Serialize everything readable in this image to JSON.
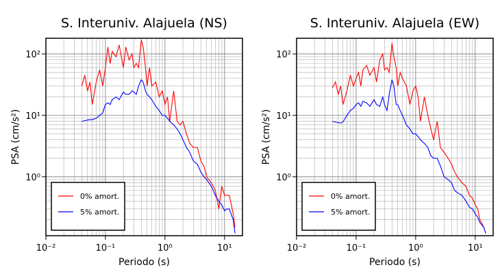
{
  "chart_data": [
    {
      "type": "line",
      "title": "S. Interuniv. Alajuela (NS)",
      "xlabel": "Periodo (s)",
      "ylabel": "PSA (cm/s²)",
      "xscale": "log",
      "yscale": "log",
      "grid": true,
      "legend": "lower left",
      "xlim": [
        0.01,
        20
      ],
      "ylim": [
        0.11,
        180
      ],
      "xticks": [
        {
          "value": 0.01,
          "label": "10⁻²"
        },
        {
          "value": 0.1,
          "label": "10⁻¹"
        },
        {
          "value": 1,
          "label": "10⁰"
        },
        {
          "value": 10,
          "label": "10¹"
        }
      ],
      "yticks": [
        {
          "value": 1,
          "label": "10⁰"
        },
        {
          "value": 10,
          "label": "10¹"
        },
        {
          "value": 100,
          "label": "10²"
        }
      ],
      "xminorticks": [
        0.02,
        0.03,
        0.04,
        0.05,
        0.06,
        0.07,
        0.08,
        0.09,
        0.2,
        0.3,
        0.4,
        0.5,
        0.6,
        0.7,
        0.8,
        0.9,
        2,
        3,
        4,
        5,
        6,
        7,
        8,
        9
      ],
      "yminorticks": [
        0.2,
        0.3,
        0.4,
        0.5,
        0.6,
        0.7,
        0.8,
        0.9,
        2,
        3,
        4,
        5,
        6,
        7,
        8,
        9,
        20,
        30,
        40,
        50,
        60,
        70,
        80,
        90
      ],
      "x": [
        0.04,
        0.045,
        0.05,
        0.055,
        0.06,
        0.07,
        0.08,
        0.09,
        0.1,
        0.11,
        0.12,
        0.13,
        0.15,
        0.17,
        0.2,
        0.22,
        0.25,
        0.28,
        0.3,
        0.33,
        0.36,
        0.4,
        0.43,
        0.47,
        0.5,
        0.55,
        0.6,
        0.7,
        0.8,
        0.9,
        1.0,
        1.1,
        1.2,
        1.4,
        1.6,
        1.8,
        2.0,
        2.3,
        2.6,
        3.0,
        3.5,
        4,
        4.5,
        5,
        6,
        7,
        8,
        9,
        10,
        11,
        12,
        14,
        15
      ],
      "series": [
        {
          "name": "0% amort.",
          "color": "#ff0000",
          "values": [
            30,
            45,
            25,
            35,
            15,
            35,
            55,
            30,
            60,
            130,
            70,
            110,
            90,
            140,
            60,
            130,
            80,
            100,
            60,
            70,
            60,
            170,
            130,
            60,
            30,
            60,
            30,
            35,
            20,
            25,
            15,
            20,
            8,
            25,
            8,
            7,
            8,
            5,
            3.5,
            3,
            3,
            1.8,
            1.5,
            1,
            0.8,
            0.6,
            0.3,
            0.7,
            0.5,
            0.5,
            0.5,
            0.25,
            0.15
          ]
        },
        {
          "name": "5% amort.",
          "color": "#0000ff",
          "values": [
            8,
            8.2,
            8.4,
            8.5,
            8.5,
            9,
            10,
            11,
            15,
            16,
            15,
            18,
            20,
            18,
            24,
            22,
            22,
            25,
            24,
            22,
            30,
            38,
            35,
            25,
            22,
            20,
            18,
            14,
            12,
            10,
            10,
            9,
            8,
            7,
            6,
            5,
            4,
            3,
            2.5,
            1.8,
            1.6,
            1.2,
            1,
            0.9,
            0.7,
            0.5,
            0.4,
            0.35,
            0.28,
            0.3,
            0.3,
            0.2,
            0.12
          ]
        }
      ]
    },
    {
      "type": "line",
      "title": "S. Interuniv. Alajuela (EW)",
      "xlabel": "Periodo (s)",
      "ylabel": "PSA (cm/s²)",
      "xscale": "log",
      "yscale": "log",
      "grid": true,
      "legend": "lower left",
      "xlim": [
        0.01,
        20
      ],
      "ylim": [
        0.11,
        180
      ],
      "xticks": [
        {
          "value": 0.01,
          "label": "10⁻²"
        },
        {
          "value": 0.1,
          "label": "10⁻¹"
        },
        {
          "value": 1,
          "label": "10⁰"
        },
        {
          "value": 10,
          "label": "10¹"
        }
      ],
      "yticks": [
        {
          "value": 1,
          "label": "10⁰"
        },
        {
          "value": 10,
          "label": "10¹"
        },
        {
          "value": 100,
          "label": "10²"
        }
      ],
      "xminorticks": [
        0.02,
        0.03,
        0.04,
        0.05,
        0.06,
        0.07,
        0.08,
        0.09,
        0.2,
        0.3,
        0.4,
        0.5,
        0.6,
        0.7,
        0.8,
        0.9,
        2,
        3,
        4,
        5,
        6,
        7,
        8,
        9
      ],
      "yminorticks": [
        0.2,
        0.3,
        0.4,
        0.5,
        0.6,
        0.7,
        0.8,
        0.9,
        2,
        3,
        4,
        5,
        6,
        7,
        8,
        9,
        20,
        30,
        40,
        50,
        60,
        70,
        80,
        90
      ],
      "x": [
        0.04,
        0.045,
        0.05,
        0.055,
        0.06,
        0.07,
        0.08,
        0.09,
        0.1,
        0.11,
        0.12,
        0.13,
        0.15,
        0.17,
        0.2,
        0.22,
        0.25,
        0.28,
        0.3,
        0.33,
        0.36,
        0.4,
        0.43,
        0.47,
        0.5,
        0.55,
        0.6,
        0.7,
        0.8,
        0.9,
        1.0,
        1.1,
        1.2,
        1.4,
        1.6,
        1.8,
        2.0,
        2.3,
        2.6,
        3.0,
        3.5,
        4,
        4.5,
        5,
        6,
        7,
        8,
        9,
        10,
        11,
        12,
        14,
        15
      ],
      "series": [
        {
          "name": "0% amort.",
          "color": "#ff0000",
          "values": [
            28,
            35,
            22,
            30,
            15,
            25,
            45,
            30,
            40,
            50,
            30,
            55,
            65,
            45,
            60,
            35,
            80,
            100,
            55,
            60,
            50,
            150,
            90,
            60,
            30,
            50,
            40,
            30,
            15,
            25,
            30,
            20,
            8,
            20,
            10,
            6,
            4,
            8,
            3,
            2.5,
            2,
            1.6,
            1.2,
            1,
            0.8,
            0.7,
            0.5,
            0.45,
            0.35,
            0.3,
            0.2,
            0.15,
            0.12
          ]
        },
        {
          "name": "5% amort.",
          "color": "#0000ff",
          "values": [
            8,
            7.8,
            7.6,
            7.5,
            7.8,
            10,
            12,
            13,
            15,
            16,
            14,
            17,
            16,
            14,
            18,
            15,
            14,
            20,
            15,
            12,
            22,
            38,
            30,
            15,
            15,
            12,
            10,
            7,
            6,
            5,
            5,
            4.5,
            4,
            3.5,
            3,
            2.2,
            2,
            2,
            1.5,
            1,
            0.9,
            0.8,
            0.6,
            0.55,
            0.5,
            0.4,
            0.32,
            0.3,
            0.25,
            0.22,
            0.18,
            0.15,
            0.12
          ]
        }
      ]
    }
  ]
}
